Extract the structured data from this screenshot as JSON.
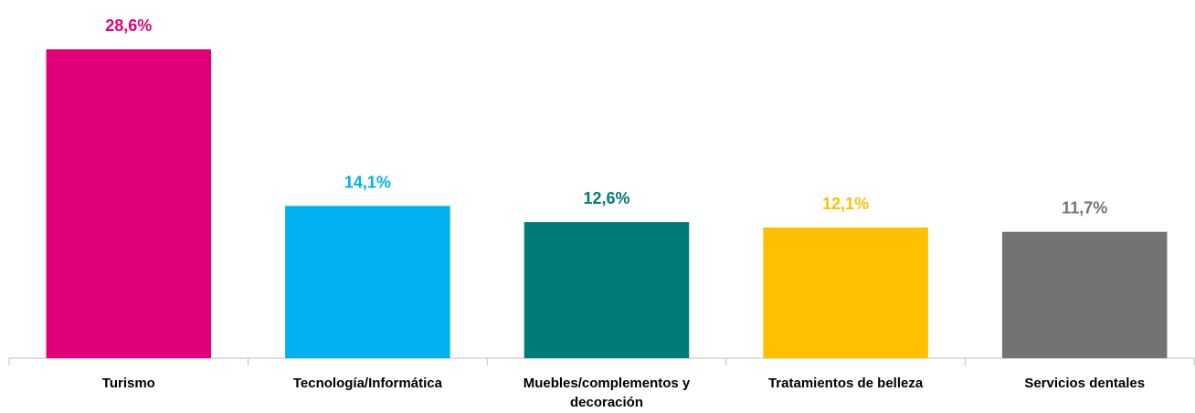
{
  "chart_data": {
    "type": "bar",
    "categories": [
      "Turismo",
      "Tecnología/Informática",
      "Muebles/complementos y decoración",
      "Tratamientos de belleza",
      "Servicios dentales"
    ],
    "values": [
      28.6,
      14.1,
      12.6,
      12.1,
      11.7
    ],
    "value_labels": [
      "28,6%",
      "14,1%",
      "12,6%",
      "12,1%",
      "11,7%"
    ],
    "colors": [
      "#e2007a",
      "#00b0f0",
      "#007a78",
      "#ffc000",
      "#737373"
    ]
  }
}
